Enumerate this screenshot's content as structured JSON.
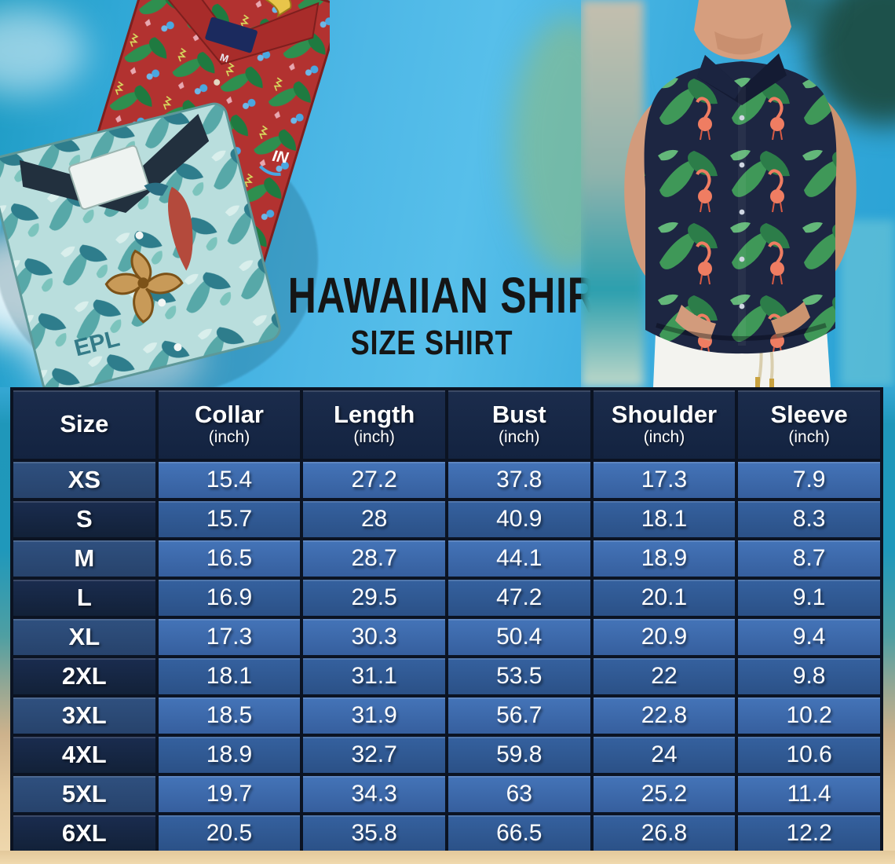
{
  "title": {
    "main": "HAWAIIAN SHIRT",
    "sub": "SIZE SHIRT"
  },
  "table": {
    "columns": [
      {
        "label": "Size",
        "sub": ""
      },
      {
        "label": "Collar",
        "sub": "(inch)"
      },
      {
        "label": "Length",
        "sub": "(inch)"
      },
      {
        "label": "Bust",
        "sub": "(inch)"
      },
      {
        "label": "Shoulder",
        "sub": "(inch)"
      },
      {
        "label": "Sleeve",
        "sub": "(inch)"
      }
    ],
    "rows": [
      {
        "size": "XS",
        "values": [
          "15.4",
          "27.2",
          "37.8",
          "17.3",
          "7.9"
        ]
      },
      {
        "size": "S",
        "values": [
          "15.7",
          "28",
          "40.9",
          "18.1",
          "8.3"
        ]
      },
      {
        "size": "M",
        "values": [
          "16.5",
          "28.7",
          "44.1",
          "18.9",
          "8.7"
        ]
      },
      {
        "size": "L",
        "values": [
          "16.9",
          "29.5",
          "47.2",
          "20.1",
          "9.1"
        ]
      },
      {
        "size": "XL",
        "values": [
          "17.3",
          "30.3",
          "50.4",
          "20.9",
          "9.4"
        ]
      },
      {
        "size": "2XL",
        "values": [
          "18.1",
          "31.1",
          "53.5",
          "22",
          "9.8"
        ]
      },
      {
        "size": "3XL",
        "values": [
          "18.5",
          "31.9",
          "56.7",
          "22.8",
          "10.2"
        ]
      },
      {
        "size": "4XL",
        "values": [
          "18.9",
          "32.7",
          "59.8",
          "24",
          "10.6"
        ]
      },
      {
        "size": "5XL",
        "values": [
          "19.7",
          "34.3",
          "63",
          "25.2",
          "11.4"
        ]
      },
      {
        "size": "6XL",
        "values": [
          "20.5",
          "35.8",
          "66.5",
          "26.8",
          "12.2"
        ]
      }
    ]
  },
  "chart_data": {
    "type": "table",
    "title": "HAWAIIAN SHIRT",
    "subtitle": "SIZE SHIRT",
    "columns": [
      "Size",
      "Collar (inch)",
      "Length (inch)",
      "Bust (inch)",
      "Shoulder (inch)",
      "Sleeve (inch)"
    ],
    "rows": [
      [
        "XS",
        15.4,
        27.2,
        37.8,
        17.3,
        7.9
      ],
      [
        "S",
        15.7,
        28,
        40.9,
        18.1,
        8.3
      ],
      [
        "M",
        16.5,
        28.7,
        44.1,
        18.9,
        8.7
      ],
      [
        "L",
        16.9,
        29.5,
        47.2,
        20.1,
        9.1
      ],
      [
        "XL",
        17.3,
        30.3,
        50.4,
        20.9,
        9.4
      ],
      [
        "2XL",
        18.1,
        31.1,
        53.5,
        22,
        9.8
      ],
      [
        "3XL",
        18.5,
        31.9,
        56.7,
        22.8,
        10.2
      ],
      [
        "4XL",
        18.9,
        32.7,
        59.8,
        24,
        10.6
      ],
      [
        "5XL",
        19.7,
        34.3,
        63,
        25.2,
        11.4
      ],
      [
        "6XL",
        20.5,
        35.8,
        66.5,
        26.8,
        12.2
      ]
    ]
  },
  "photo_text": {
    "red_shirt_size_tag": "M",
    "red_shirt_brand_print": "IN",
    "teal_shirt_print": "EPL"
  },
  "colors": {
    "header_bg": "#152642",
    "row_odd_bg": "#3d6aac",
    "row_even_bg": "#305a95",
    "size_col_odd_bg": "#2b4b77",
    "size_col_even_bg": "#142442",
    "table_border": "#0b1322",
    "table_text": "#ffffff",
    "title_text": "#151515",
    "sky": "#38a9d6",
    "sand": "#ecd3a7",
    "red_shirt": "#b23230",
    "teal_shirt": "#b9dedd",
    "navy_shirt": "#1d2642"
  }
}
